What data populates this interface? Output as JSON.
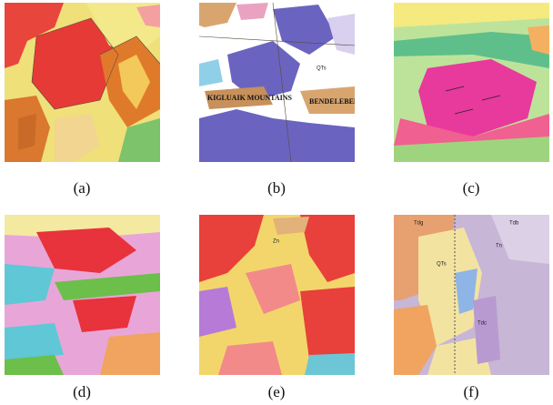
{
  "panels": [
    {
      "caption": "(a)"
    },
    {
      "caption": "(b)",
      "labels": [
        "BENDELEBEN",
        "KIGLUAIK MOUNTAINS",
        "QTs"
      ]
    },
    {
      "caption": "(c)"
    },
    {
      "caption": "(d)"
    },
    {
      "caption": "(e)",
      "labels": [
        "Zn"
      ]
    },
    {
      "caption": "(f)",
      "labels": [
        "Tdb",
        "Tdg",
        "Tn",
        "QTs",
        "Tdc"
      ]
    }
  ]
}
